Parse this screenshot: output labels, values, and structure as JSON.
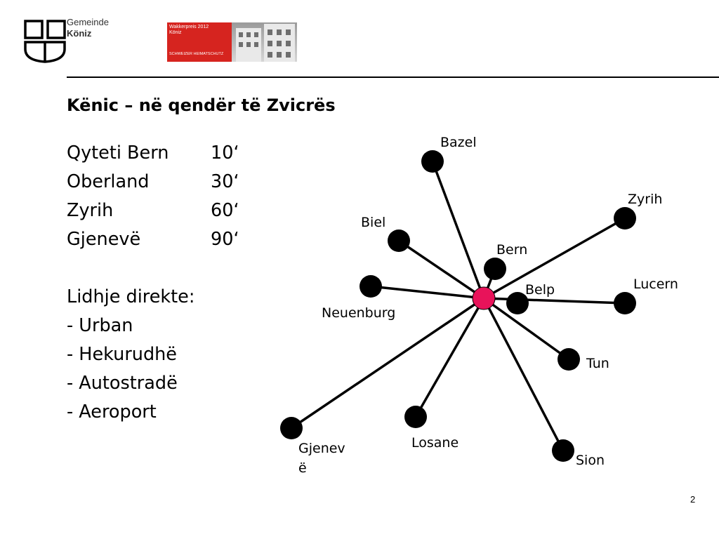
{
  "header": {
    "logo_line1": "Gemeinde",
    "logo_line2": "Köniz",
    "award_line1": "Wakkerpreis 2012",
    "award_line2": "Köniz",
    "award_line3": "SCHWEIZER HEIMATSCHUTZ"
  },
  "title": "Kënic – në qendër të Zvicrës",
  "travel_times": [
    {
      "place": "Qyteti Bern",
      "minutes": "10‘"
    },
    {
      "place": "Oberland",
      "minutes": "30‘"
    },
    {
      "place": "Zyrih",
      "minutes": "60‘"
    },
    {
      "place": "Gjenevë",
      "minutes": "90‘"
    }
  ],
  "connections": {
    "heading": "Lidhje direkte:",
    "items": [
      "- Urban",
      "- Hekurudhë",
      "- Autostradë",
      "- Aeroport"
    ]
  },
  "diagram": {
    "hub_color": "#e8135a",
    "node_color": "#000000",
    "nodes": [
      {
        "label": "Bazel"
      },
      {
        "label": "Zyrih"
      },
      {
        "label": "Biel"
      },
      {
        "label": "Bern"
      },
      {
        "label": "Lucern"
      },
      {
        "label": "Belp"
      },
      {
        "label": "Neuenburg"
      },
      {
        "label": "Tun"
      },
      {
        "label": "Gjenev"
      },
      {
        "label": "ë"
      },
      {
        "label": "Losane"
      },
      {
        "label": "Sion"
      }
    ]
  },
  "page_number": "2"
}
